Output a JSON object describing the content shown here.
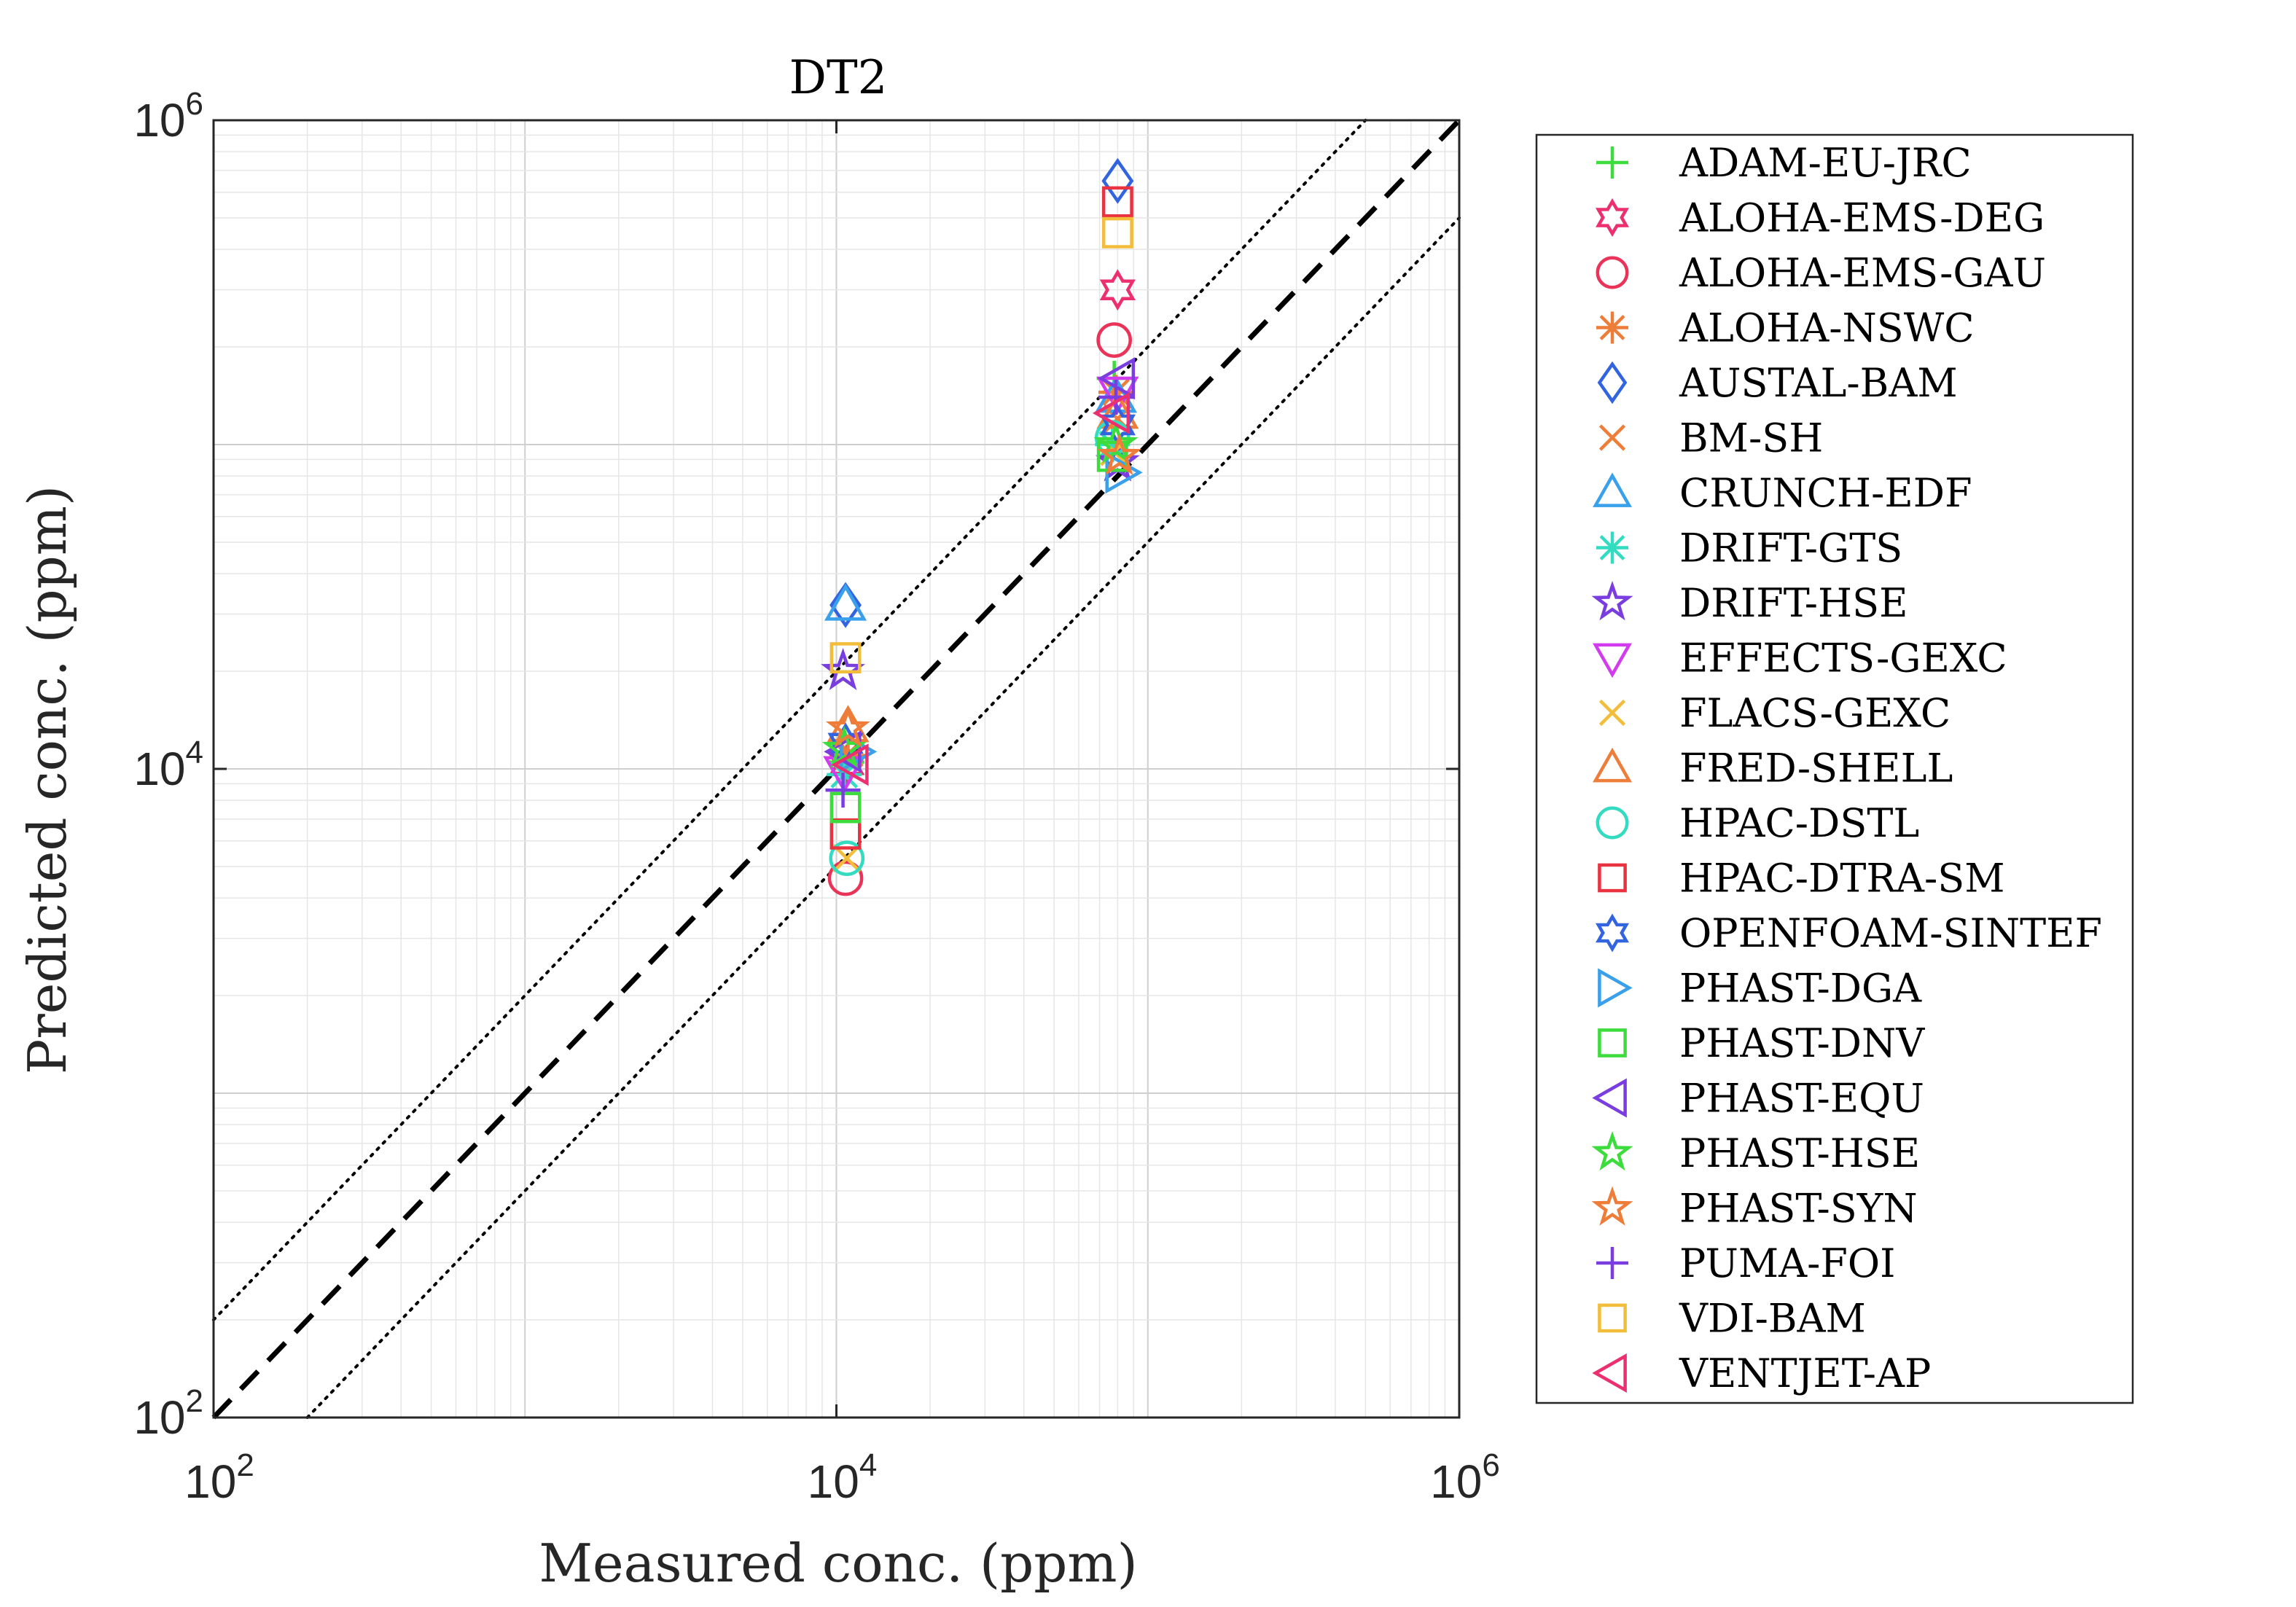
{
  "chart_data": {
    "type": "scatter",
    "title": "DT2",
    "xlabel": "Measured conc. (ppm)",
    "ylabel": "Predicted conc. (ppm)",
    "xscale": "log",
    "yscale": "log",
    "xlim": [
      100,
      1000000
    ],
    "ylim": [
      100,
      1000000
    ],
    "x_ticks": [
      {
        "base": "10",
        "exp": "2"
      },
      {
        "base": "10",
        "exp": "4"
      },
      {
        "base": "10",
        "exp": "6"
      }
    ],
    "y_ticks": [
      {
        "base": "10",
        "exp": "2"
      },
      {
        "base": "10",
        "exp": "4"
      },
      {
        "base": "10",
        "exp": "6"
      }
    ],
    "grid": true,
    "legend_position": "outside-right",
    "reference_lines": [
      {
        "style": "dashed",
        "factor": 1
      },
      {
        "style": "dotted",
        "factor": 2
      },
      {
        "style": "dotted",
        "factor": 0.5
      }
    ],
    "series": [
      {
        "name": "ADAM-EU-JRC",
        "marker": "plus",
        "color": "#3ddc3d",
        "points": [
          [
            10800,
            10500
          ],
          [
            78000,
            160000
          ]
        ]
      },
      {
        "name": "ALOHA-EMS-DEG",
        "marker": "hexagram",
        "color": "#ec2f6e",
        "points": [
          [
            10800,
            10300
          ],
          [
            80000,
            300000
          ]
        ]
      },
      {
        "name": "ALOHA-EMS-GAU",
        "marker": "circle",
        "color": "#ea3358",
        "points": [
          [
            10700,
            4600
          ],
          [
            78000,
            210000
          ]
        ]
      },
      {
        "name": "ALOHA-NSWC",
        "marker": "asterisk",
        "color": "#ef7d3a",
        "points": [
          [
            10900,
            11000
          ],
          [
            79000,
            145000
          ]
        ]
      },
      {
        "name": "AUSTAL-BAM",
        "marker": "diamond",
        "color": "#3264e0",
        "points": [
          [
            10700,
            32000
          ],
          [
            80000,
            650000
          ]
        ]
      },
      {
        "name": "BM-SH",
        "marker": "x",
        "color": "#ef7d3a",
        "points": [
          [
            11000,
            11200
          ],
          [
            80000,
            120000
          ]
        ]
      },
      {
        "name": "CRUNCH-EDF",
        "marker": "triangle-up",
        "color": "#3aa0ea",
        "points": [
          [
            10700,
            32000
          ],
          [
            79000,
            140000
          ]
        ]
      },
      {
        "name": "DRIFT-GTS",
        "marker": "asterisk",
        "color": "#33dcc0",
        "points": [
          [
            10600,
            9600
          ],
          [
            77000,
            100000
          ]
        ]
      },
      {
        "name": "DRIFT-HSE",
        "marker": "pentagram",
        "color": "#7a3de0",
        "points": [
          [
            10500,
            20000
          ],
          [
            80000,
            88000
          ]
        ]
      },
      {
        "name": "EFFECTS-GEXC",
        "marker": "triangle-down",
        "color": "#d23cee",
        "points": [
          [
            10600,
            9800
          ],
          [
            80000,
            145000
          ]
        ]
      },
      {
        "name": "FLACS-GEXC",
        "marker": "x",
        "color": "#f2bd3a",
        "points": [
          [
            10800,
            5300
          ],
          [
            78000,
            95000
          ]
        ]
      },
      {
        "name": "FRED-SHELL",
        "marker": "triangle-up",
        "color": "#ef7d3a",
        "points": [
          [
            10900,
            13500
          ],
          [
            80000,
            125000
          ]
        ]
      },
      {
        "name": "HPAC-DSTL",
        "marker": "circle",
        "color": "#33dcc0",
        "points": [
          [
            10800,
            5300
          ],
          [
            77000,
            105000
          ]
        ]
      },
      {
        "name": "HPAC-DTRA-SM",
        "marker": "square",
        "color": "#ea3340",
        "points": [
          [
            10700,
            6300
          ],
          [
            80000,
            560000
          ]
        ]
      },
      {
        "name": "OPENFOAM-SINTEF",
        "marker": "hexagram",
        "color": "#3264e0",
        "points": [
          [
            10700,
            12000
          ],
          [
            80000,
            115000
          ]
        ]
      },
      {
        "name": "PHAST-DGA",
        "marker": "triangle-right",
        "color": "#3aa0ea",
        "points": [
          [
            11500,
            11300
          ],
          [
            82000,
            82000
          ]
        ]
      },
      {
        "name": "PHAST-DNV",
        "marker": "square",
        "color": "#3ddc3d",
        "points": [
          [
            10700,
            7600
          ],
          [
            77000,
            92000
          ]
        ]
      },
      {
        "name": "PHAST-EQU",
        "marker": "triangle-left",
        "color": "#7a3de0",
        "points": [
          [
            10700,
            11300
          ],
          [
            81000,
            160000
          ]
        ]
      },
      {
        "name": "PHAST-HSE",
        "marker": "pentagram",
        "color": "#3ddc3d",
        "points": [
          [
            10600,
            11500
          ],
          [
            79000,
            100000
          ]
        ]
      },
      {
        "name": "PHAST-SYN",
        "marker": "pentagram",
        "color": "#ef7d3a",
        "points": [
          [
            10900,
            13300
          ],
          [
            81000,
            92000
          ]
        ]
      },
      {
        "name": "PUMA-FOI",
        "marker": "plus",
        "color": "#7a3de0",
        "points": [
          [
            10500,
            8600
          ],
          [
            79000,
            140000
          ]
        ]
      },
      {
        "name": "VDI-BAM",
        "marker": "square",
        "color": "#f2bd3a",
        "points": [
          [
            10700,
            22000
          ],
          [
            80000,
            450000
          ]
        ]
      },
      {
        "name": "VENTJET-AP",
        "marker": "triangle-left",
        "color": "#ec2f6e",
        "points": [
          [
            11300,
            10300
          ],
          [
            78000,
            125000
          ]
        ]
      }
    ]
  }
}
